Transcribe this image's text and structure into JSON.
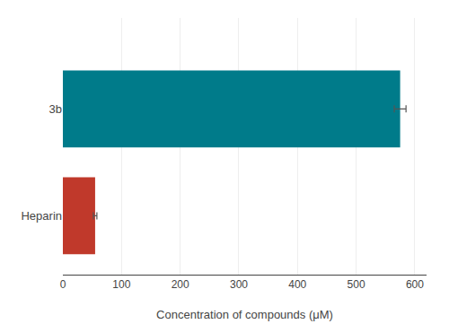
{
  "chart_data": {
    "type": "bar",
    "orientation": "horizontal",
    "categories": [
      "Heparin",
      "3b"
    ],
    "values": [
      55,
      575
    ],
    "errors": [
      3,
      10
    ],
    "colors": [
      "#C0392B",
      "#007B8A"
    ],
    "xlabel": "Concentration of compounds (μM)",
    "xlim": [
      0,
      620
    ],
    "xticks": [
      0,
      100,
      200,
      300,
      400,
      500,
      600
    ],
    "grid": true
  }
}
